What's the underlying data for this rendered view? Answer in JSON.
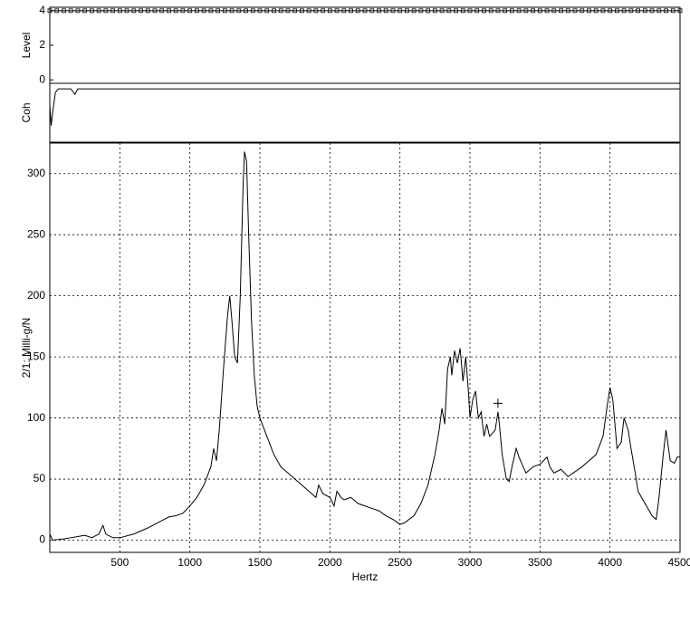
{
  "chart_data": [
    {
      "type": "line",
      "ylabel": "Level",
      "xlim": [
        0,
        4500
      ],
      "ylim": [
        -0.2,
        4.2
      ],
      "yticks": [
        0,
        2,
        4
      ],
      "marker": "square",
      "series": [
        {
          "color": "#000000",
          "x": [
            0,
            50,
            100,
            150,
            200,
            250,
            300,
            350,
            400,
            450,
            500,
            550,
            600,
            650,
            700,
            750,
            800,
            850,
            900,
            950,
            1000,
            1050,
            1100,
            1150,
            1200,
            1250,
            1300,
            1350,
            1400,
            1450,
            1500,
            1550,
            1600,
            1650,
            1700,
            1750,
            1800,
            1850,
            1900,
            1950,
            2000,
            2050,
            2100,
            2150,
            2200,
            2250,
            2300,
            2350,
            2400,
            2450,
            2500,
            2550,
            2600,
            2650,
            2700,
            2750,
            2800,
            2850,
            2900,
            2950,
            3000,
            3050,
            3100,
            3150,
            3200,
            3250,
            3300,
            3350,
            3400,
            3450,
            3500,
            3550,
            3600,
            3650,
            3700,
            3750,
            3800,
            3850,
            3900,
            3950,
            4000,
            4050,
            4100,
            4150,
            4200,
            4250,
            4300,
            4350,
            4400,
            4450,
            4500
          ],
          "values": [
            4,
            4,
            4,
            4,
            4,
            4,
            4,
            4,
            4,
            4,
            4,
            4,
            4,
            4,
            4,
            4,
            4,
            4,
            4,
            4,
            4,
            4,
            4,
            4,
            4,
            4,
            4,
            4,
            4,
            4,
            4,
            4,
            4,
            4,
            4,
            4,
            4,
            4,
            4,
            4,
            4,
            4,
            4,
            4,
            4,
            4,
            4,
            4,
            4,
            4,
            4,
            4,
            4,
            4,
            4,
            4,
            4,
            4,
            4,
            4,
            4,
            4,
            4,
            4,
            4,
            4,
            4,
            4,
            4,
            4,
            4,
            4,
            4,
            4,
            4,
            4,
            4,
            4,
            4,
            4,
            4,
            4,
            4,
            4,
            4,
            4,
            4,
            4,
            4,
            4,
            4
          ]
        }
      ]
    },
    {
      "type": "line",
      "ylabel": "Coh",
      "xlim": [
        0,
        4500
      ],
      "ylim": [
        0.7,
        1.02
      ],
      "series": [
        {
          "color": "#000000",
          "x": [
            0,
            10,
            20,
            40,
            60,
            80,
            100,
            150,
            180,
            200,
            220,
            4500
          ],
          "values": [
            0.9,
            0.79,
            0.86,
            0.97,
            0.99,
            0.99,
            0.99,
            0.99,
            0.96,
            0.99,
            0.99,
            0.99
          ]
        }
      ]
    },
    {
      "type": "line",
      "ylabel": "2/1: Milli-g/N",
      "xlabel": "Hertz",
      "grid": true,
      "xlim": [
        0,
        4500
      ],
      "xticks": [
        500,
        1000,
        1500,
        2000,
        2500,
        3000,
        3500,
        4000,
        4500
      ],
      "ylim": [
        -10,
        325
      ],
      "yticks": [
        0,
        50,
        100,
        150,
        200,
        250,
        300
      ],
      "cursor": {
        "x": 3200,
        "y": 112
      },
      "series": [
        {
          "color": "#000000",
          "x": [
            0,
            20,
            100,
            150,
            200,
            250,
            300,
            350,
            380,
            400,
            450,
            500,
            600,
            700,
            800,
            850,
            900,
            950,
            1000,
            1050,
            1100,
            1150,
            1170,
            1190,
            1210,
            1240,
            1270,
            1285,
            1300,
            1320,
            1340,
            1360,
            1380,
            1390,
            1405,
            1420,
            1440,
            1460,
            1480,
            1500,
            1550,
            1600,
            1650,
            1700,
            1750,
            1800,
            1850,
            1900,
            1920,
            1950,
            2000,
            2030,
            2050,
            2080,
            2100,
            2150,
            2200,
            2250,
            2300,
            2350,
            2400,
            2450,
            2500,
            2530,
            2600,
            2650,
            2700,
            2750,
            2780,
            2800,
            2820,
            2840,
            2860,
            2870,
            2890,
            2910,
            2930,
            2950,
            2970,
            2990,
            3000,
            3020,
            3040,
            3060,
            3080,
            3100,
            3120,
            3140,
            3180,
            3200,
            3210,
            3230,
            3260,
            3280,
            3300,
            3330,
            3350,
            3380,
            3400,
            3450,
            3500,
            3550,
            3570,
            3600,
            3650,
            3700,
            3750,
            3800,
            3850,
            3900,
            3950,
            3980,
            4000,
            4020,
            4050,
            4080,
            4100,
            4130,
            4150,
            4180,
            4200,
            4250,
            4300,
            4330,
            4350,
            4380,
            4400,
            4430,
            4460,
            4480,
            4500
          ],
          "values": [
            5,
            0,
            1,
            2,
            3,
            4,
            2,
            5,
            12,
            5,
            2,
            2,
            5,
            10,
            16,
            19,
            20,
            22,
            28,
            35,
            45,
            60,
            75,
            65,
            90,
            140,
            185,
            200,
            180,
            150,
            145,
            200,
            290,
            318,
            310,
            250,
            180,
            135,
            110,
            100,
            85,
            70,
            60,
            55,
            50,
            45,
            40,
            35,
            45,
            38,
            35,
            28,
            40,
            35,
            33,
            35,
            30,
            28,
            26,
            24,
            20,
            17,
            13,
            14,
            20,
            30,
            45,
            70,
            90,
            108,
            95,
            140,
            150,
            135,
            155,
            145,
            157,
            130,
            150,
            120,
            100,
            115,
            122,
            100,
            105,
            85,
            95,
            85,
            90,
            105,
            95,
            70,
            50,
            48,
            60,
            75,
            68,
            60,
            55,
            60,
            62,
            68,
            60,
            55,
            58,
            52,
            56,
            60,
            65,
            70,
            85,
            110,
            125,
            115,
            75,
            80,
            100,
            90,
            75,
            55,
            40,
            30,
            20,
            17,
            35,
            70,
            90,
            65,
            63,
            68,
            68
          ]
        }
      ]
    }
  ]
}
